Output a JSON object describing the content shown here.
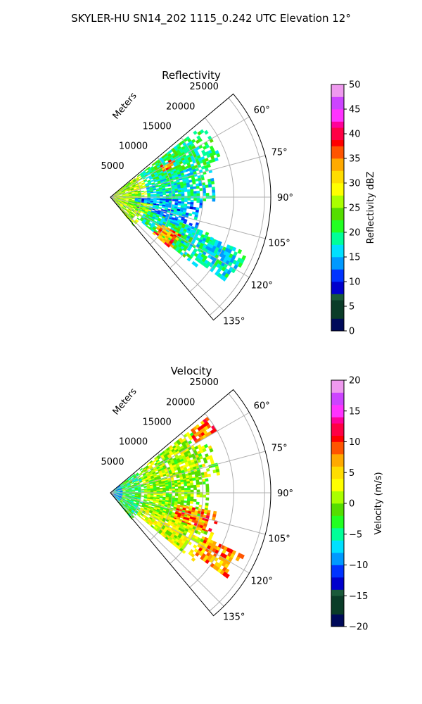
{
  "figure": {
    "title": "SKYLER-HU  SN14_202  1115_0.242 UTC Elevation 12°"
  },
  "colors": {
    "grid": "#b0b0b0",
    "axis": "#000000"
  },
  "chart_data": [
    {
      "type": "polar-sector",
      "title": "Reflectivity",
      "radial_label": "Meters",
      "theta_range_deg": [
        50,
        140
      ],
      "r_range_m": [
        0,
        26000
      ],
      "r_ticks": [
        "5000",
        "10000",
        "15000",
        "20000",
        "25000"
      ],
      "r_tick_values": [
        5000,
        10000,
        15000,
        20000,
        25000
      ],
      "theta_ticks": [
        "60°",
        "75°",
        "90°",
        "105°",
        "120°",
        "135°"
      ],
      "theta_tick_values": [
        60,
        75,
        90,
        105,
        120,
        135
      ],
      "grid": true,
      "colorbar": {
        "label": "Reflectivity dBZ",
        "range": [
          0,
          50
        ],
        "ticks": [
          "0",
          "5",
          "10",
          "15",
          "20",
          "25",
          "30",
          "35",
          "40",
          "45",
          "50"
        ],
        "tick_values": [
          0,
          5,
          10,
          15,
          20,
          25,
          30,
          35,
          40,
          45,
          50
        ],
        "stops": [
          [
            0,
            "#000a5a"
          ],
          [
            0.06,
            "#0a3c28"
          ],
          [
            0.12,
            "#1a5a3a"
          ],
          [
            0.15,
            "#0000cc"
          ],
          [
            0.2,
            "#0033ff"
          ],
          [
            0.25,
            "#0099ff"
          ],
          [
            0.3,
            "#00e0ff"
          ],
          [
            0.35,
            "#00ff99"
          ],
          [
            0.4,
            "#22ff22"
          ],
          [
            0.45,
            "#55dd00"
          ],
          [
            0.5,
            "#aaff00"
          ],
          [
            0.55,
            "#ffff00"
          ],
          [
            0.6,
            "#ffdd00"
          ],
          [
            0.65,
            "#ffaa00"
          ],
          [
            0.7,
            "#ff5500"
          ],
          [
            0.74,
            "#ff0000"
          ],
          [
            0.78,
            "#ff0044"
          ],
          [
            0.82,
            "#ff0099"
          ],
          [
            0.86,
            "#ff33ff"
          ],
          [
            0.9,
            "#cc44ff"
          ],
          [
            0.95,
            "#ee99ee"
          ],
          [
            1,
            "#ffe8ff"
          ]
        ]
      },
      "echo_regions": [
        {
          "az": [
            52,
            140
          ],
          "r": [
            0,
            6000
          ],
          "value": 26
        },
        {
          "az": [
            52,
            70
          ],
          "r": [
            6000,
            19000
          ],
          "value": 20
        },
        {
          "az": [
            70,
            92
          ],
          "r": [
            6000,
            17000
          ],
          "value": 18
        },
        {
          "az": [
            92,
            110
          ],
          "r": [
            4000,
            15000
          ],
          "value": 14
        },
        {
          "az": [
            110,
            128
          ],
          "r": [
            6000,
            18000
          ],
          "value": 19
        },
        {
          "az": [
            112,
            125
          ],
          "r": [
            16000,
            24000
          ],
          "value": 17
        },
        {
          "az": [
            118,
            130
          ],
          "r": [
            9000,
            13000
          ],
          "value": 35
        },
        {
          "az": [
            58,
            64
          ],
          "r": [
            9500,
            12000
          ],
          "value": 34
        },
        {
          "az": [
            100,
            115
          ],
          "r": [
            3000,
            7000
          ],
          "value": 24
        }
      ]
    },
    {
      "type": "polar-sector",
      "title": "Velocity",
      "radial_label": "Meters",
      "theta_range_deg": [
        50,
        140
      ],
      "r_range_m": [
        0,
        26000
      ],
      "r_ticks": [
        "5000",
        "10000",
        "15000",
        "20000",
        "25000"
      ],
      "r_tick_values": [
        5000,
        10000,
        15000,
        20000,
        25000
      ],
      "theta_ticks": [
        "60°",
        "75°",
        "90°",
        "105°",
        "120°",
        "135°"
      ],
      "theta_tick_values": [
        60,
        75,
        90,
        105,
        120,
        135
      ],
      "grid": true,
      "colorbar": {
        "label": "Velocity (m/s)",
        "range": [
          -20,
          20
        ],
        "ticks": [
          "−20",
          "−15",
          "−10",
          "−5",
          "0",
          "5",
          "10",
          "15",
          "20"
        ],
        "tick_values": [
          -20,
          -15,
          -10,
          -5,
          0,
          5,
          10,
          15,
          20
        ],
        "stops": [
          [
            0,
            "#000a5a"
          ],
          [
            0.06,
            "#0a3c28"
          ],
          [
            0.12,
            "#1a5a3a"
          ],
          [
            0.15,
            "#0000cc"
          ],
          [
            0.2,
            "#0033ff"
          ],
          [
            0.25,
            "#0099ff"
          ],
          [
            0.3,
            "#00e0ff"
          ],
          [
            0.35,
            "#00ff99"
          ],
          [
            0.4,
            "#22ff22"
          ],
          [
            0.45,
            "#55dd00"
          ],
          [
            0.5,
            "#aaff00"
          ],
          [
            0.55,
            "#ffff00"
          ],
          [
            0.6,
            "#ffdd00"
          ],
          [
            0.65,
            "#ffaa00"
          ],
          [
            0.7,
            "#ff5500"
          ],
          [
            0.74,
            "#ff0000"
          ],
          [
            0.78,
            "#ff0044"
          ],
          [
            0.82,
            "#ff0099"
          ],
          [
            0.86,
            "#ff33ff"
          ],
          [
            0.9,
            "#cc44ff"
          ],
          [
            0.95,
            "#ee99ee"
          ],
          [
            1,
            "#ffe8ff"
          ]
        ]
      },
      "echo_regions": [
        {
          "az": [
            52,
            140
          ],
          "r": [
            0,
            2000
          ],
          "value": -8
        },
        {
          "az": [
            52,
            140
          ],
          "r": [
            2000,
            5500
          ],
          "value": -3
        },
        {
          "az": [
            52,
            80
          ],
          "r": [
            5500,
            18000
          ],
          "value": 1
        },
        {
          "az": [
            80,
            112
          ],
          "r": [
            5500,
            16000
          ],
          "value": 0
        },
        {
          "az": [
            100,
            112
          ],
          "r": [
            11000,
            18000
          ],
          "value": 8
        },
        {
          "az": [
            112,
            128
          ],
          "r": [
            5500,
            18000
          ],
          "value": 2
        },
        {
          "az": [
            115,
            125
          ],
          "r": [
            17000,
            24000
          ],
          "value": 7
        },
        {
          "az": [
            52,
            60
          ],
          "r": [
            16000,
            20000
          ],
          "value": 8
        }
      ]
    }
  ]
}
